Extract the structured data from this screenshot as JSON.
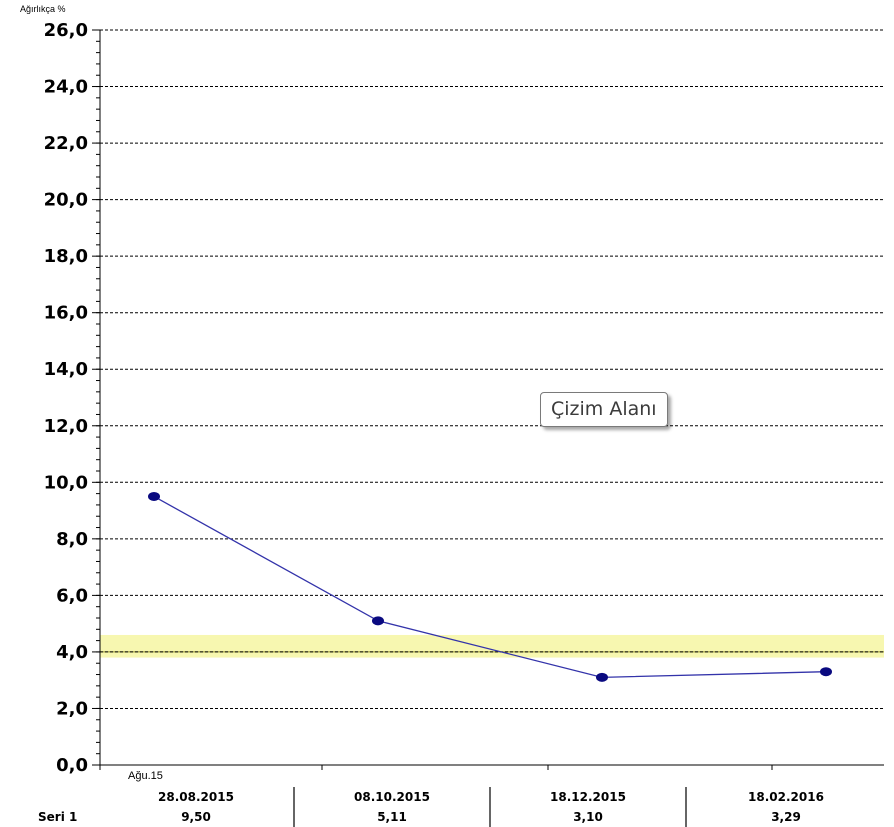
{
  "unit_label": "Ağırlıkça %",
  "tooltip_text": "Çizim Alanı",
  "chart_data": {
    "type": "line",
    "ylim": [
      0,
      26
    ],
    "y_ticks": [
      "0,0",
      "2,0",
      "4,0",
      "6,0",
      "8,0",
      "10,0",
      "12,0",
      "14,0",
      "16,0",
      "18,0",
      "20,0",
      "22,0",
      "24,0",
      "26,0"
    ],
    "y_tick_values": [
      0,
      2,
      4,
      6,
      8,
      10,
      12,
      14,
      16,
      18,
      20,
      22,
      24,
      26
    ],
    "grid": "dashed horizontal",
    "x_sub_label": "Ağu.15",
    "limit_band": {
      "from": 3.8,
      "to": 4.6,
      "line": 4.0,
      "color": "#f7f7b0",
      "line_color": "#8a8a2a"
    },
    "series": [
      {
        "color": "#3333aa",
        "marker_color": "#0a0a80",
        "x": [
          "28.08.2015",
          "08.10.2015",
          "18.12.2015",
          "18.02.2016"
        ],
        "values": [
          9.5,
          5.1,
          3.1,
          3.3
        ]
      }
    ],
    "table": {
      "row_label": "Seri 1",
      "dates": [
        "28.08.2015",
        "08.10.2015",
        "18.12.2015",
        "18.02.2016"
      ],
      "values": [
        "9,50",
        "5,11",
        "3,10",
        "3,29"
      ]
    }
  }
}
